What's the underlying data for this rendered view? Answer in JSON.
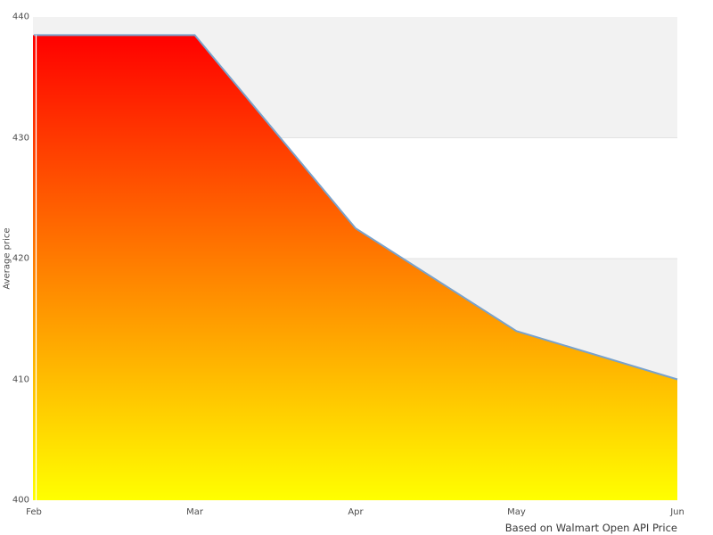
{
  "figure": {
    "ylabel": "Average price",
    "caption": "Based on Walmart Open API Price"
  },
  "chart_data": {
    "type": "area",
    "categories": [
      "Feb",
      "Mar",
      "Apr",
      "May",
      "Jun"
    ],
    "values": [
      438.5,
      438.5,
      422.5,
      414,
      410
    ],
    "title": "",
    "xlabel": "",
    "ylabel": "Average price",
    "ylim": [
      400,
      440
    ],
    "yticks": [
      400,
      410,
      420,
      430,
      440
    ],
    "grid": "horizontal-bands-alternating",
    "legend": "none",
    "annotations": [
      "Based on Walmart Open API Price"
    ],
    "colors": {
      "area_gradient_top": "#ff0000",
      "area_gradient_bottom": "#ffff00",
      "line": "#79a2cb",
      "band_gray": "#f2f2f2",
      "band_white": "#ffffff",
      "gridline": "#e2e2e2",
      "tick_text": "#4d4d4d",
      "caption_text": "#383838"
    }
  }
}
